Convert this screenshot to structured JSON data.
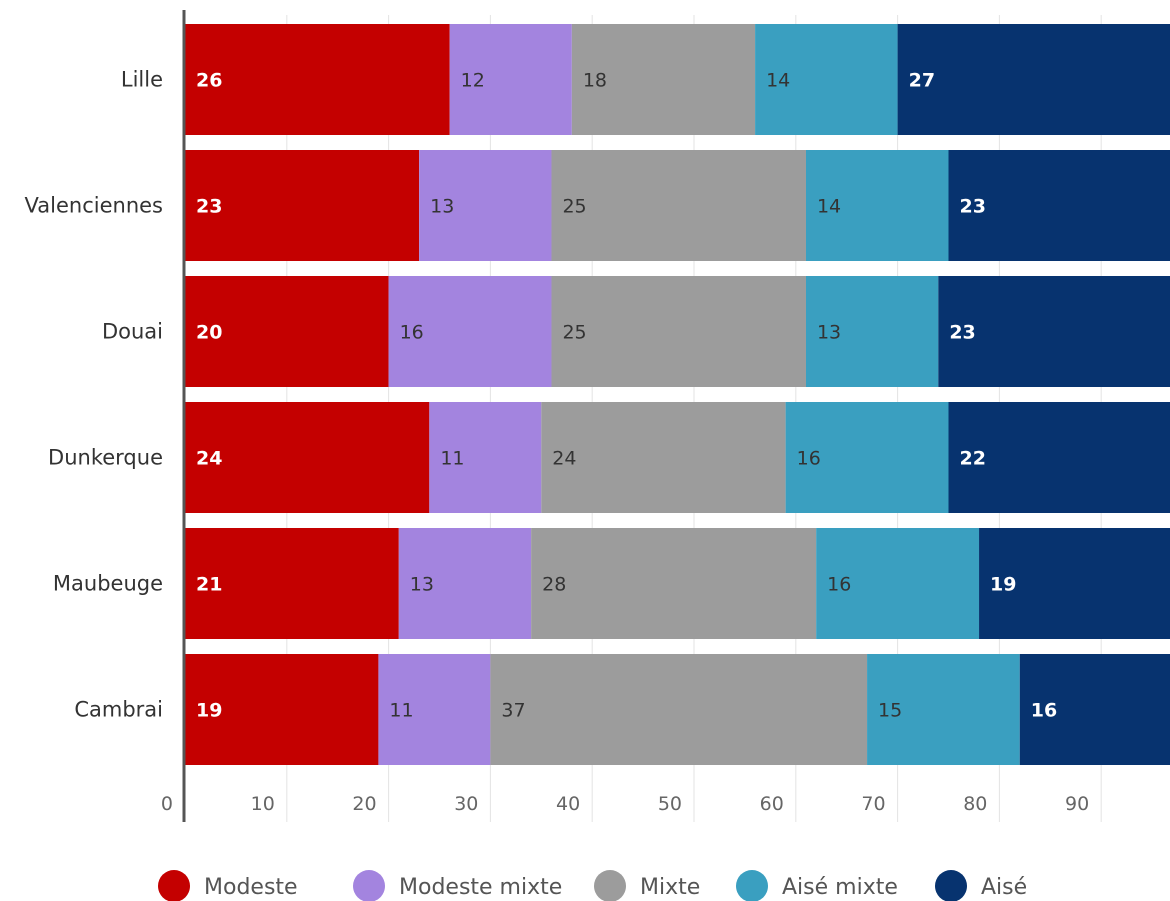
{
  "chart_data": {
    "type": "bar",
    "orientation": "horizontal",
    "stacked": true,
    "categories": [
      "Lille",
      "Valenciennes",
      "Douai",
      "Dunkerque",
      "Maubeuge",
      "Cambrai"
    ],
    "series": [
      {
        "name": "Modeste",
        "color": "#c40000",
        "label_color": "#ffffff",
        "label_bold": true,
        "values": [
          26,
          23,
          20,
          24,
          21,
          19
        ]
      },
      {
        "name": "Modeste mixte",
        "color": "#a384df",
        "label_color": "#333333",
        "label_bold": false,
        "values": [
          12,
          13,
          16,
          11,
          13,
          11
        ]
      },
      {
        "name": "Mixte",
        "color": "#9c9c9c",
        "label_color": "#333333",
        "label_bold": false,
        "values": [
          18,
          25,
          25,
          24,
          28,
          37
        ]
      },
      {
        "name": "Aisé mixte",
        "color": "#3a9fc0",
        "label_color": "#333333",
        "label_bold": false,
        "values": [
          14,
          14,
          13,
          16,
          16,
          15
        ]
      },
      {
        "name": "Aisé",
        "color": "#07336f",
        "label_color": "#ffffff",
        "label_bold": true,
        "values": [
          27,
          23,
          23,
          22,
          19,
          16
        ]
      }
    ],
    "x_ticks": [
      "0",
      "10",
      "20",
      "30",
      "40",
      "50",
      "60",
      "70",
      "80",
      "90"
    ],
    "xlim": [
      0,
      97
    ],
    "grid": true,
    "legend_position": "bottom",
    "title": "",
    "xlabel": "",
    "ylabel": ""
  }
}
